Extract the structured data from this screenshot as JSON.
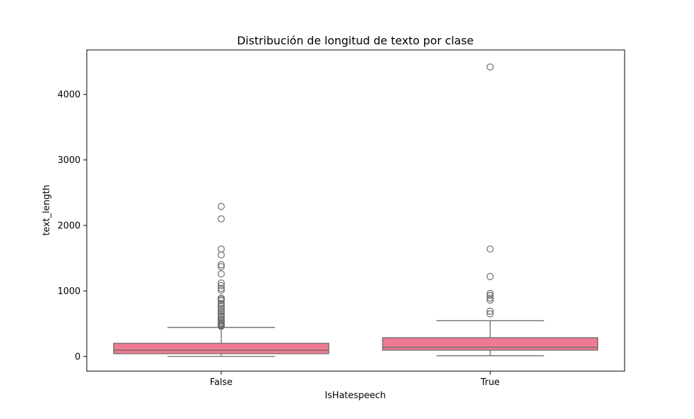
{
  "chart_data": {
    "type": "box",
    "title": "Distribución de longitud de texto por clase",
    "xlabel": "IsHatespeech",
    "ylabel": "text_length",
    "ylim": [
      -225,
      4680
    ],
    "yticks": [
      0,
      1000,
      2000,
      3000,
      4000
    ],
    "categories": [
      "False",
      "True"
    ],
    "grid": false,
    "legend": "none",
    "box_color": "#f07a92",
    "line_color": "#6b6b6b",
    "boxes": [
      {
        "category": "False",
        "min": 0,
        "q1": 42,
        "median": 95,
        "q3": 200,
        "max": 442,
        "outliers": [
          460,
          470,
          480,
          495,
          510,
          530,
          550,
          570,
          600,
          620,
          650,
          680,
          700,
          730,
          760,
          790,
          810,
          850,
          870,
          890,
          1010,
          1040,
          1080,
          1120,
          1260,
          1370,
          1400,
          1550,
          1640,
          2100,
          2290
        ]
      },
      {
        "category": "True",
        "min": 10,
        "q1": 95,
        "median": 140,
        "q3": 285,
        "max": 545,
        "outliers": [
          650,
          690,
          860,
          890,
          930,
          960,
          1220,
          1640,
          4420
        ]
      }
    ]
  }
}
